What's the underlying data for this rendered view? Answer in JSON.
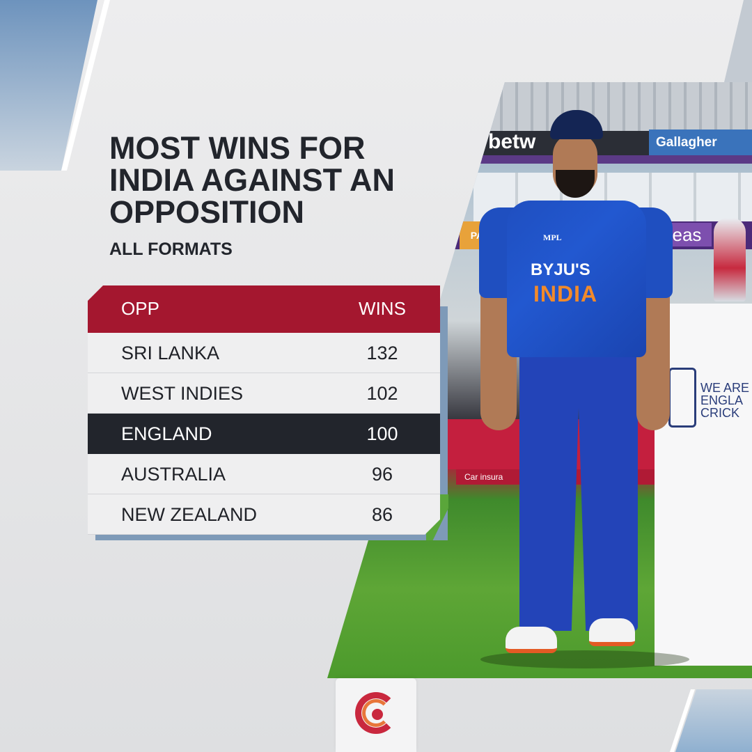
{
  "title": "MOST WINS FOR INDIA AGAINST AN OPPOSITION",
  "subtitle": "ALL FORMATS",
  "colors": {
    "header_bg": "#a4172f",
    "highlight_row_bg": "#22252c",
    "row_bg": "#efeff0",
    "text_dark": "#22252c",
    "accent_blue": "#7e9ab8",
    "accent_green": "#5aa63a"
  },
  "table": {
    "headers": {
      "opp": "OPP",
      "wins": "WINS"
    },
    "rows": [
      {
        "opp": "SRI LANKA",
        "wins": "132",
        "highlight": false
      },
      {
        "opp": "WEST INDIES",
        "wins": "102",
        "highlight": false
      },
      {
        "opp": "ENGLAND",
        "wins": "100",
        "highlight": true
      },
      {
        "opp": "AUSTRALIA",
        "wins": "96",
        "highlight": false
      },
      {
        "opp": "NEW ZEALAND",
        "wins": "86",
        "highlight": false
      }
    ]
  },
  "photo": {
    "boards": {
      "betway": "betw",
      "gallagher": "Gallagher",
      "pan": "PAN",
      "ageas": "ageas",
      "insurance": "Car insura",
      "ecb_lines": [
        "WE ARE",
        "ENGLA",
        "CRICK"
      ]
    },
    "jersey": {
      "maker": "MPL",
      "sponsor": "BYJU'S",
      "team": "INDIA"
    }
  },
  "logo": {
    "icon": "cricket-ball-logo-icon"
  }
}
